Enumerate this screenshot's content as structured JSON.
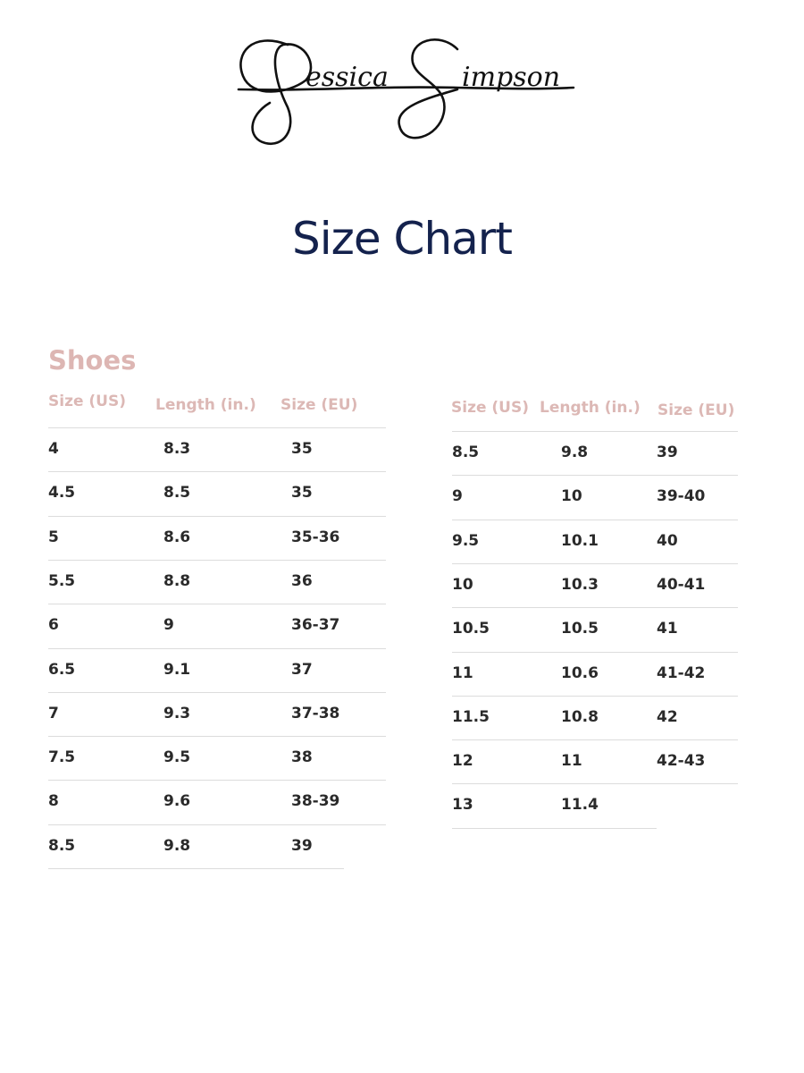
{
  "brand": {
    "logo_text": "Jessica Simpson"
  },
  "title": "Size Chart",
  "section": "Shoes",
  "left_table": {
    "headers": [
      "Size (US)",
      "Length (in.)",
      "Size (EU)"
    ],
    "rows": [
      [
        "4",
        "8.3",
        "35"
      ],
      [
        "4.5",
        "8.5",
        "35"
      ],
      [
        "5",
        "8.6",
        "35-36"
      ],
      [
        "5.5",
        "8.8",
        "36"
      ],
      [
        "6",
        "9",
        "36-37"
      ],
      [
        "6.5",
        "9.1",
        "37"
      ],
      [
        "7",
        "9.3",
        "37-38"
      ],
      [
        "7.5",
        "9.5",
        "38"
      ],
      [
        "8",
        "9.6",
        "38-39"
      ],
      [
        "8.5",
        "9.8",
        "39"
      ]
    ]
  },
  "right_table": {
    "headers": [
      "Size (US)",
      "Length (in.)",
      "Size (EU)"
    ],
    "rows": [
      [
        "8.5",
        "9.8",
        "39"
      ],
      [
        "9",
        "10",
        "39-40"
      ],
      [
        "9.5",
        "10.1",
        "40"
      ],
      [
        "10",
        "10.3",
        "40-41"
      ],
      [
        "10.5",
        "10.5",
        "41"
      ],
      [
        "11",
        "10.6",
        "41-42"
      ],
      [
        "11.5",
        "10.8",
        "42"
      ],
      [
        "12",
        "11",
        "42-43"
      ],
      [
        "13",
        "11.4",
        ""
      ]
    ]
  },
  "colors": {
    "title": "#14224d",
    "accent": "#ddb6b3",
    "text": "#2a2a2a"
  }
}
